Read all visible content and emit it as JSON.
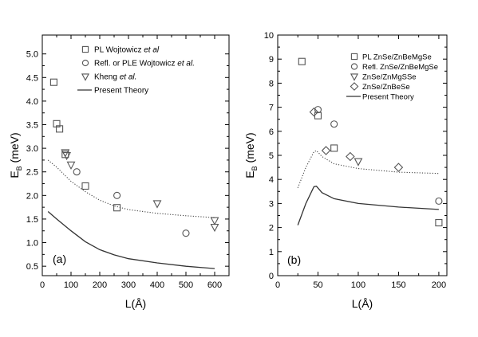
{
  "chart_data": [
    {
      "type": "scatter",
      "panel_label": "(a)",
      "ylabel_main": "E",
      "ylabel_sub": "B",
      "ylabel_unit": "(meV)",
      "xlabel": "L(Å)",
      "xlim": [
        0,
        650
      ],
      "ylim": [
        0.3,
        5.4
      ],
      "xticks": [
        0,
        100,
        200,
        300,
        400,
        500,
        600
      ],
      "yticks": [
        0.5,
        1.0,
        1.5,
        2.0,
        2.5,
        3.0,
        3.5,
        4.0,
        4.5,
        5.0
      ],
      "ytick_labels": [
        "0.5",
        "1.0",
        "1.5",
        "2.0",
        "2.5",
        "3.0",
        "3.5",
        "4.0",
        "4.5",
        "5.0"
      ],
      "legend_placement": "top-right",
      "series": [
        {
          "name": "PL Wojtowicz",
          "name_italic": "et al",
          "marker": "square",
          "points": [
            [
              40,
              4.4
            ],
            [
              50,
              3.52
            ],
            [
              60,
              3.41
            ],
            [
              80,
              2.87
            ],
            [
              150,
              2.2
            ],
            [
              260,
              1.74
            ]
          ]
        },
        {
          "name": "Refl. or PLE Wojtowicz",
          "name_italic": "et al.",
          "marker": "circle",
          "points": [
            [
              120,
              2.5
            ],
            [
              260,
              2.0
            ],
            [
              500,
              1.2
            ]
          ]
        },
        {
          "name": "Kheng",
          "name_italic": "et al.",
          "marker": "triangle-down",
          "points": [
            [
              80,
              2.91
            ],
            [
              85,
              2.85
            ],
            [
              100,
              2.65
            ],
            [
              400,
              1.83
            ],
            [
              600,
              1.47
            ],
            [
              600,
              1.33
            ]
          ]
        },
        {
          "name": "Present Theory",
          "marker": "line-solid",
          "points": [
            [
              20,
              1.66
            ],
            [
              50,
              1.5
            ],
            [
              100,
              1.25
            ],
            [
              150,
              1.02
            ],
            [
              200,
              0.85
            ],
            [
              250,
              0.74
            ],
            [
              300,
              0.66
            ],
            [
              400,
              0.57
            ],
            [
              500,
              0.5
            ],
            [
              600,
              0.45
            ]
          ]
        },
        {
          "name": "",
          "marker": "line-dotted",
          "points": [
            [
              20,
              2.75
            ],
            [
              50,
              2.6
            ],
            [
              100,
              2.3
            ],
            [
              150,
              2.08
            ],
            [
              200,
              1.9
            ],
            [
              250,
              1.78
            ],
            [
              300,
              1.7
            ],
            [
              400,
              1.62
            ],
            [
              500,
              1.57
            ],
            [
              600,
              1.53
            ]
          ]
        }
      ]
    },
    {
      "type": "scatter",
      "panel_label": "(b)",
      "ylabel_main": "E",
      "ylabel_sub": "B",
      "ylabel_unit": "(meV)",
      "xlabel": "L(Å)",
      "xlim": [
        0,
        210
      ],
      "ylim": [
        0,
        10
      ],
      "xticks": [
        0,
        50,
        100,
        150,
        200
      ],
      "yticks": [
        0,
        1,
        2,
        3,
        4,
        5,
        6,
        7,
        8,
        9,
        10
      ],
      "ytick_labels": [
        "0",
        "1",
        "2",
        "3",
        "4",
        "5",
        "6",
        "7",
        "8",
        "9",
        "10"
      ],
      "legend_placement": "top-right",
      "series": [
        {
          "name": "PL ZnSe/ZnBeMgSe",
          "marker": "square",
          "points": [
            [
              30,
              8.9
            ],
            [
              50,
              6.65
            ],
            [
              70,
              5.3
            ],
            [
              200,
              2.2
            ]
          ]
        },
        {
          "name": "Refl. ZnSe/ZnBeMgSe",
          "marker": "circle",
          "points": [
            [
              50,
              6.9
            ],
            [
              70,
              6.3
            ],
            [
              200,
              3.1
            ]
          ]
        },
        {
          "name": "ZnSe/ZnMgSSe",
          "marker": "triangle-down",
          "points": [
            [
              100,
              4.75
            ]
          ]
        },
        {
          "name": "ZnSe/ZnBeSe",
          "marker": "diamond",
          "points": [
            [
              45,
              6.8
            ],
            [
              60,
              5.2
            ],
            [
              90,
              4.95
            ],
            [
              150,
              4.5
            ]
          ]
        },
        {
          "name": "Present Theory",
          "marker": "line-solid",
          "points": [
            [
              25,
              2.1
            ],
            [
              35,
              3.0
            ],
            [
              45,
              3.7
            ],
            [
              48,
              3.72
            ],
            [
              55,
              3.45
            ],
            [
              70,
              3.2
            ],
            [
              100,
              3.0
            ],
            [
              150,
              2.85
            ],
            [
              200,
              2.75
            ]
          ]
        },
        {
          "name": "",
          "marker": "line-dotted",
          "points": [
            [
              25,
              3.65
            ],
            [
              35,
              4.5
            ],
            [
              45,
              5.15
            ],
            [
              48,
              5.2
            ],
            [
              55,
              4.95
            ],
            [
              70,
              4.65
            ],
            [
              100,
              4.45
            ],
            [
              150,
              4.3
            ],
            [
              200,
              4.25
            ]
          ]
        }
      ]
    }
  ]
}
